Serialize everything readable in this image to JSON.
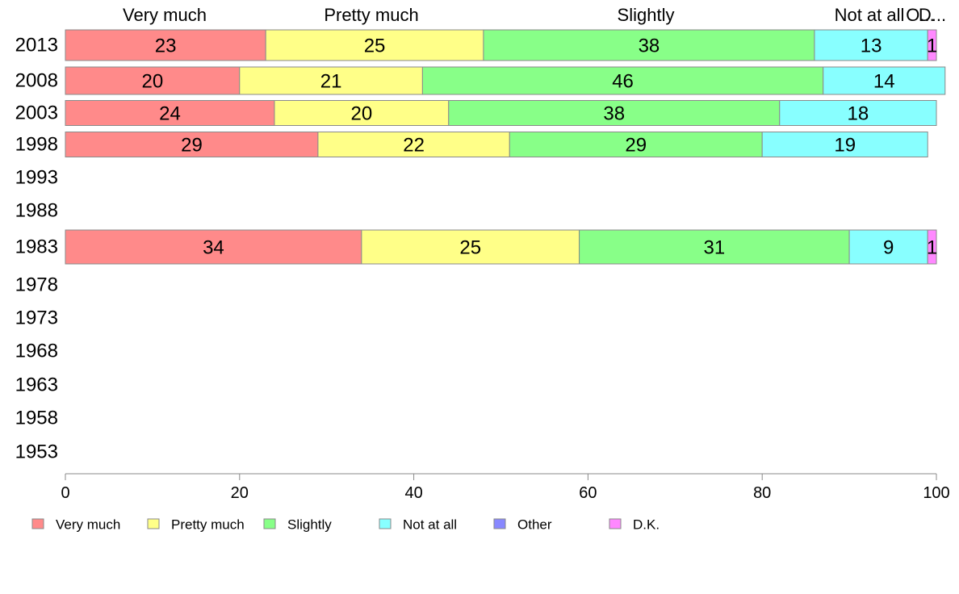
{
  "chart_data": {
    "type": "bar",
    "orientation": "horizontal",
    "stacked": true,
    "categories": [
      "2013",
      "2008",
      "2003",
      "1998",
      "1993",
      "1988",
      "1983",
      "1978",
      "1973",
      "1968",
      "1963",
      "1958",
      "1953"
    ],
    "series": [
      {
        "name": "Very much",
        "color": "#ff8a8a",
        "values": [
          23,
          20,
          24,
          29,
          null,
          null,
          34,
          null,
          null,
          null,
          null,
          null,
          null
        ]
      },
      {
        "name": "Pretty much",
        "color": "#ffff88",
        "values": [
          25,
          21,
          20,
          22,
          null,
          null,
          25,
          null,
          null,
          null,
          null,
          null,
          null
        ]
      },
      {
        "name": "Slightly",
        "color": "#88ff88",
        "values": [
          38,
          46,
          38,
          29,
          null,
          null,
          31,
          null,
          null,
          null,
          null,
          null,
          null
        ]
      },
      {
        "name": "Not at all",
        "color": "#88ffff",
        "values": [
          13,
          14,
          18,
          19,
          null,
          null,
          9,
          null,
          null,
          null,
          null,
          null,
          null
        ]
      },
      {
        "name": "Other",
        "color": "#8888ff",
        "values": [
          0,
          0,
          0,
          0,
          null,
          null,
          0,
          null,
          null,
          null,
          null,
          null,
          null
        ]
      },
      {
        "name": "D.K.",
        "color": "#ff88ff",
        "values": [
          1,
          0,
          0,
          0,
          null,
          null,
          1,
          null,
          null,
          null,
          null,
          null,
          null
        ]
      }
    ],
    "top_labels": [
      "Very much",
      "Pretty much",
      "Slightly",
      "Not at all",
      "O...",
      "D..."
    ],
    "xlim": [
      0,
      100
    ],
    "xticks": [
      0,
      20,
      40,
      60,
      80,
      100
    ],
    "legend_position": "bottom"
  }
}
